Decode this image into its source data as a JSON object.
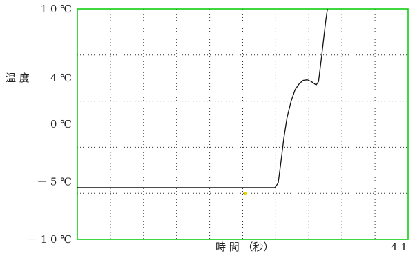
{
  "chart_data": {
    "type": "line",
    "ylabel": "温 度",
    "xlabel": "時 間 （秒）",
    "x_end_label": "4 1",
    "y_tick_labels": [
      {
        "value": 10,
        "label": "1 0 ℃"
      },
      {
        "value": 4,
        "label": "4 ℃"
      },
      {
        "value": 0,
        "label": "0 ℃"
      },
      {
        "value": -5,
        "label": "－ 5 ℃"
      },
      {
        "value": -10,
        "label": "－ 1 0 ℃"
      }
    ],
    "xlim": [
      0,
      41
    ],
    "ylim": [
      -10,
      10
    ],
    "grid": true,
    "frame_color": "#00cc00",
    "grid_color": "#333333",
    "line_color": "#111111",
    "marker_color": "#e6d200",
    "series": [
      {
        "points": [
          [
            0,
            -5.5
          ],
          [
            24.5,
            -5.5
          ],
          [
            24.9,
            -5.1
          ],
          [
            25.2,
            -3.5
          ],
          [
            25.6,
            -1.2
          ],
          [
            26.0,
            0.6
          ],
          [
            26.5,
            2.0
          ],
          [
            27.0,
            3.0
          ],
          [
            27.5,
            3.5
          ],
          [
            28.0,
            3.8
          ],
          [
            28.5,
            3.85
          ],
          [
            29.0,
            3.7
          ],
          [
            29.4,
            3.5
          ],
          [
            29.6,
            3.4
          ],
          [
            29.9,
            3.7
          ],
          [
            30.3,
            6.0
          ],
          [
            30.8,
            9.0
          ],
          [
            31.0,
            10.0
          ]
        ]
      }
    ],
    "markers": [
      {
        "x": 20.8,
        "y": -6.0
      }
    ]
  }
}
